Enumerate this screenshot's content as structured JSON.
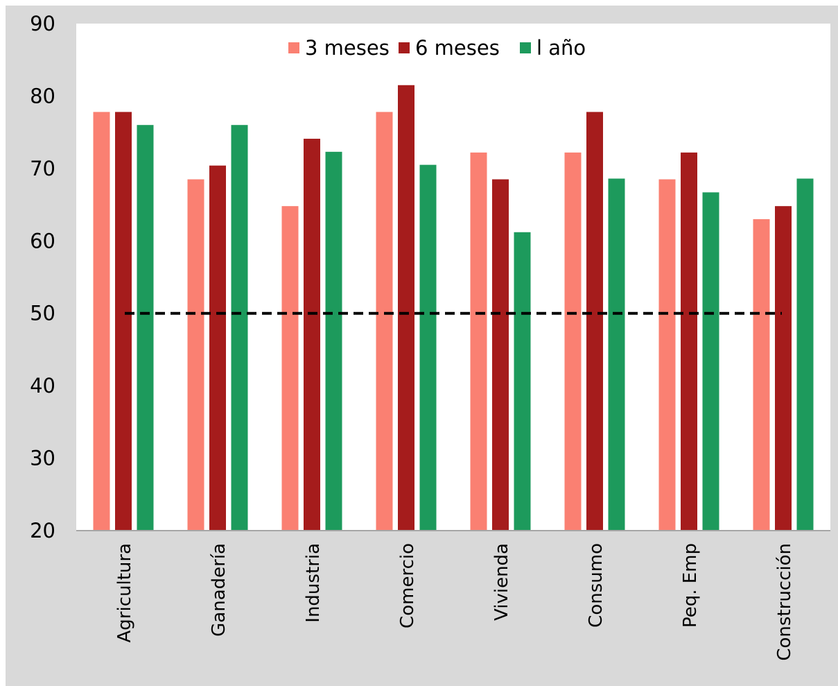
{
  "chart_data": {
    "type": "bar",
    "title": "",
    "xlabel": "",
    "ylabel": "",
    "categories": [
      "Agricultura",
      "Ganadería",
      "Industria",
      "Comercio",
      "Vivienda",
      "Consumo",
      "Peq. Emp",
      "Construcción"
    ],
    "series": [
      {
        "name": "3 meses",
        "color": "#fa8072",
        "values": [
          77.8,
          68.5,
          64.8,
          77.8,
          72.2,
          72.2,
          68.5,
          63.0
        ]
      },
      {
        "name": "6 meses",
        "color": "#a51c1c",
        "values": [
          77.8,
          70.4,
          74.1,
          81.5,
          68.5,
          77.8,
          72.2,
          64.8
        ]
      },
      {
        "name": "1 año",
        "color": "#1d9a5c",
        "values": [
          76.0,
          76.0,
          72.3,
          70.5,
          61.2,
          68.6,
          66.7,
          68.6
        ]
      }
    ],
    "ylim": [
      20,
      90
    ],
    "yticks": [
      20,
      30,
      40,
      50,
      60,
      70,
      80,
      90
    ],
    "reference_line": {
      "y": 50,
      "style": "dashed",
      "color": "#000000"
    },
    "legend": {
      "position": "top-center",
      "labels": [
        "3 meses",
        "6 meses",
        "l año"
      ]
    },
    "grid": false,
    "background": "#d9d9d9",
    "plot_background": "#ffffff"
  }
}
